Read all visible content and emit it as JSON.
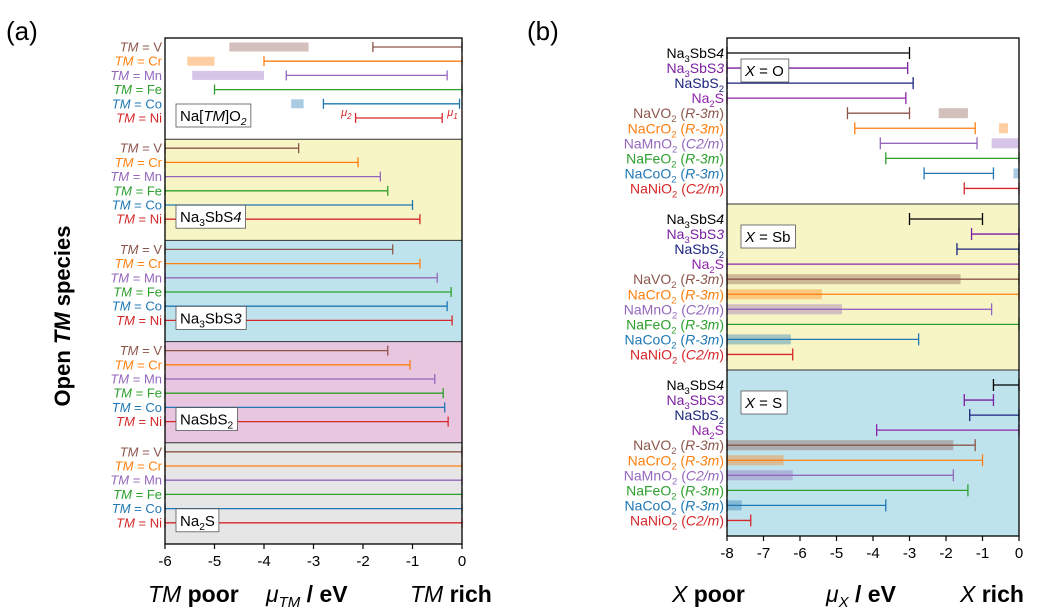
{
  "colors": {
    "V": "#8c564b",
    "Cr": "#ff7f0e",
    "Mn": "#9467bd",
    "Fe": "#2ca02c",
    "Co": "#1f77b4",
    "Ni": "#d62728",
    "Na3SbS4": "#000000",
    "Na3SbS3": "#7b1fa2",
    "NaSbS2": "#1a237e",
    "Na2S": "#8e24aa",
    "bg_Na3SbS4": "#f7f5c6",
    "bg_Na3SbS3": "#bfe3ec",
    "bg_NaSbS2": "#e8c6e0",
    "bg_Na2S": "#e6e6e6"
  },
  "panel_a": {
    "panel_label": "(a)",
    "ylabel_prefix": "Open ",
    "ylabel_italic": "TM",
    "ylabel_suffix": " species",
    "xlabel_left_italic": "TM",
    "xlabel_left_rest": " poor",
    "xlabel_mid_mu": "μ",
    "xlabel_mid_sub": "TM",
    "xlabel_mid_rest": " / eV",
    "xlabel_right_italic": "TM",
    "xlabel_right_rest": " rich",
    "mu2_label": "μ2",
    "mu1_label": "μ1",
    "row_prefix": "TM",
    "row_eq": " = "
  },
  "panel_b": {
    "panel_label": "(b)",
    "xlabel_left_italic": "X",
    "xlabel_left_rest": " poor",
    "xlabel_mid_mu": "μ",
    "xlabel_mid_sub": "X",
    "xlabel_mid_rest": " / eV",
    "xlabel_right_italic": "X",
    "xlabel_right_rest": " rich",
    "x_eq": " = "
  },
  "chart_data": [
    {
      "type": "bar",
      "panel": "a",
      "orientation": "horizontal-range",
      "xlim": [
        -6,
        0
      ],
      "xticks": [
        "-6",
        "-5",
        "-4",
        "-3",
        "-2",
        "-1",
        "0"
      ],
      "grid": false,
      "row_species": [
        "V",
        "Cr",
        "Mn",
        "Fe",
        "Co",
        "Ni"
      ],
      "groups": [
        {
          "label_parts": [
            "Na[",
            "TM",
            "]O",
            "2",
            ""
          ],
          "background": "none",
          "intervals": [
            [
              -1.8,
              0
            ],
            [
              -4.0,
              0
            ],
            [
              -3.55,
              -0.3
            ],
            [
              -5.0,
              0
            ],
            [
              -2.8,
              -0.05
            ],
            [
              -2.15,
              -0.4
            ]
          ],
          "bands": [
            [
              -4.7,
              -3.1
            ],
            [
              -5.55,
              -5.0
            ],
            [
              -5.45,
              -4.0
            ],
            null,
            [
              -3.45,
              -3.2
            ],
            null
          ]
        },
        {
          "label_parts": [
            "Na",
            "3",
            "SbS",
            "4",
            ""
          ],
          "background": "bg_Na3SbS4",
          "intervals": [
            [
              -6,
              -3.3
            ],
            [
              -6,
              -2.1
            ],
            [
              -6,
              -1.65
            ],
            [
              -6,
              -1.5
            ],
            [
              -6,
              -1.0
            ],
            [
              -6,
              -0.85
            ]
          ],
          "bands": [
            null,
            null,
            null,
            null,
            null,
            null
          ]
        },
        {
          "label_parts": [
            "Na",
            "3",
            "SbS",
            "3",
            ""
          ],
          "background": "bg_Na3SbS3",
          "intervals": [
            [
              -6,
              -1.4
            ],
            [
              -6,
              -0.85
            ],
            [
              -6,
              -0.5
            ],
            [
              -6,
              -0.22
            ],
            [
              -6,
              -0.3
            ],
            [
              -6,
              -0.2
            ]
          ],
          "bands": [
            null,
            null,
            null,
            null,
            null,
            null
          ]
        },
        {
          "label_parts": [
            "NaSbS",
            "2",
            "",
            "",
            ""
          ],
          "background": "bg_NaSbS2",
          "intervals": [
            [
              -6,
              -1.5
            ],
            [
              -6,
              -1.05
            ],
            [
              -6,
              -0.55
            ],
            [
              -6,
              -0.38
            ],
            [
              -6,
              -0.35
            ],
            [
              -6,
              -0.28
            ]
          ],
          "bands": [
            null,
            null,
            null,
            null,
            null,
            null
          ]
        },
        {
          "label_parts": [
            "Na",
            "2",
            "S",
            "",
            ""
          ],
          "background": "bg_Na2S",
          "intervals": [
            [
              -6,
              0
            ],
            [
              -6,
              0
            ],
            [
              -6,
              0
            ],
            [
              -6,
              0
            ],
            [
              -6,
              0
            ],
            [
              -6,
              0
            ]
          ],
          "bands": [
            null,
            null,
            null,
            null,
            null,
            null
          ]
        }
      ]
    },
    {
      "type": "bar",
      "panel": "b",
      "orientation": "horizontal-range",
      "xlim": [
        -8,
        0
      ],
      "xticks": [
        "-8",
        "-7",
        "-6",
        "-5",
        "-4",
        "-3",
        "-2",
        "-1",
        "0"
      ],
      "grid": false,
      "rows": [
        {
          "parts": [
            "Na",
            "3",
            "SbS",
            "4",
            ""
          ],
          "color": "Na3SbS4"
        },
        {
          "parts": [
            "Na",
            "3",
            "SbS",
            "3",
            ""
          ],
          "color": "Na3SbS3"
        },
        {
          "parts": [
            "NaSbS",
            "2",
            "",
            "",
            ""
          ],
          "color": "NaSbS2"
        },
        {
          "parts": [
            "Na",
            "2",
            "S",
            "",
            ""
          ],
          "color": "Na2S"
        },
        {
          "parts": [
            "NaVO",
            "2",
            " (",
            "R-3m",
            ")"
          ],
          "color": "V"
        },
        {
          "parts": [
            "NaCrO",
            "2",
            " (",
            "R-3m",
            ")"
          ],
          "color": "Cr"
        },
        {
          "parts": [
            "NaMnO",
            "2",
            " (",
            "C2/m",
            ")"
          ],
          "color": "Mn"
        },
        {
          "parts": [
            "NaFeO",
            "2",
            " (",
            "R-3m",
            ")"
          ],
          "color": "Fe"
        },
        {
          "parts": [
            "NaCoO",
            "2",
            " (",
            "R-3m",
            ")"
          ],
          "color": "Co"
        },
        {
          "parts": [
            "NaNiO",
            "2",
            " (",
            "C2/m",
            ")"
          ],
          "color": "Ni"
        }
      ],
      "groups": [
        {
          "element": "O",
          "background": "none",
          "intervals": [
            [
              -8,
              -3.0
            ],
            [
              -8,
              -3.05
            ],
            [
              -8,
              -2.9
            ],
            [
              -8,
              -3.1
            ],
            [
              -4.7,
              -3.0
            ],
            [
              -4.5,
              -1.2
            ],
            [
              -3.8,
              -1.15
            ],
            [
              -3.65,
              0
            ],
            [
              -2.6,
              -0.7
            ],
            [
              -1.5,
              0
            ]
          ],
          "bands": [
            null,
            null,
            null,
            null,
            [
              -2.2,
              -1.4
            ],
            [
              -0.55,
              -0.3
            ],
            [
              -0.75,
              0
            ],
            null,
            [
              -0.15,
              0
            ],
            null
          ]
        },
        {
          "element": "Sb",
          "background": "bg_Na3SbS4",
          "intervals": [
            [
              -3.0,
              -1.0
            ],
            [
              -1.3,
              0
            ],
            [
              -1.7,
              0
            ],
            [
              -8,
              0
            ],
            [
              -8,
              0
            ],
            [
              -8,
              0
            ],
            [
              -8,
              -0.75
            ],
            [
              -8,
              0
            ],
            [
              -8,
              -2.75
            ],
            [
              -8,
              -6.2
            ]
          ],
          "bands": [
            null,
            null,
            null,
            null,
            [
              -8,
              -1.6
            ],
            [
              -8,
              -5.4
            ],
            [
              -8,
              -4.85
            ],
            null,
            [
              -8,
              -6.25
            ],
            null
          ]
        },
        {
          "element": "S",
          "background": "bg_Na3SbS3",
          "intervals": [
            [
              -0.7,
              0
            ],
            [
              -1.5,
              -0.7
            ],
            [
              -1.35,
              0
            ],
            [
              -3.9,
              0
            ],
            [
              -8,
              -1.2
            ],
            [
              -8,
              -1.0
            ],
            [
              -8,
              -1.8
            ],
            [
              -8,
              -1.4
            ],
            [
              -8,
              -3.65
            ],
            [
              -8,
              -7.35
            ]
          ],
          "bands": [
            null,
            null,
            null,
            null,
            [
              -8,
              -1.8
            ],
            [
              -8,
              -6.45
            ],
            [
              -8,
              -6.2
            ],
            null,
            [
              -8,
              -7.6
            ],
            null
          ]
        }
      ]
    }
  ]
}
